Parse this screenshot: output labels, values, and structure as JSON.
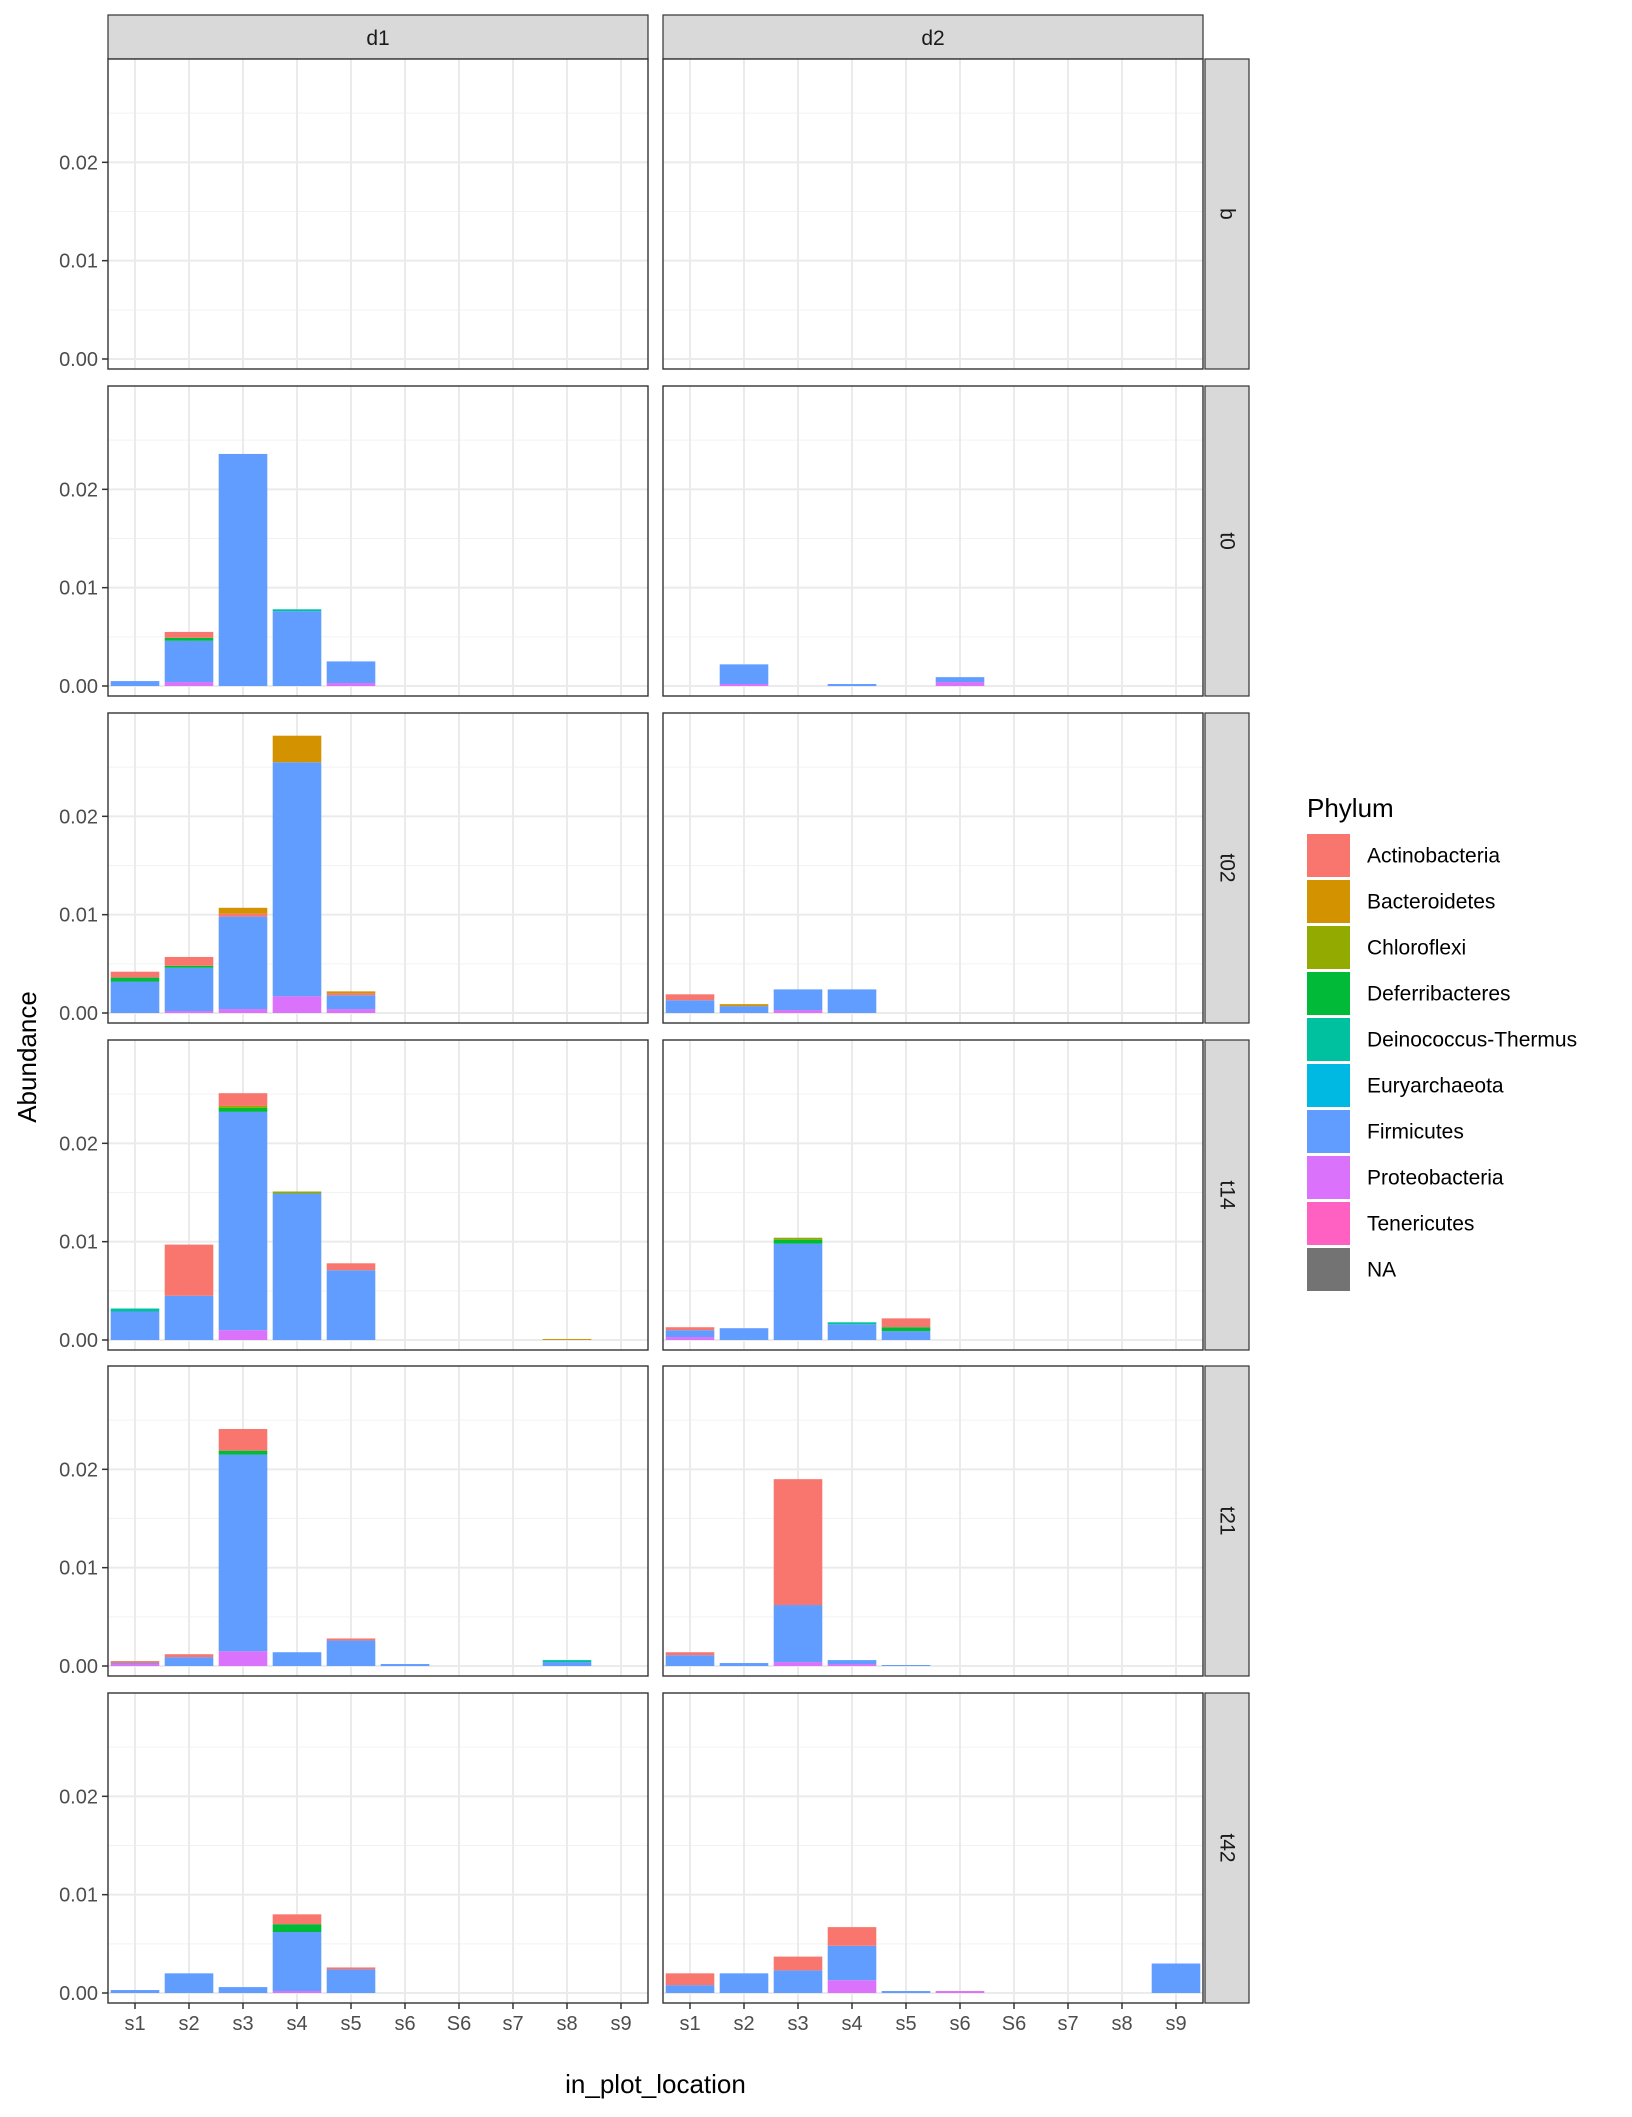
{
  "chart_data": {
    "type": "bar",
    "stacked": true,
    "facet_columns": [
      "d1",
      "d2"
    ],
    "facet_rows": [
      "b",
      "t0",
      "t02",
      "t14",
      "t21",
      "t42"
    ],
    "categories": [
      "s1",
      "s2",
      "s3",
      "s4",
      "s5",
      "s6",
      "S6",
      "s7",
      "s8",
      "s9"
    ],
    "xlabel": "in_plot_location",
    "ylabel": "Abundance",
    "ylim": [
      0,
      0.03
    ],
    "yticks": [
      0.0,
      0.01,
      0.02
    ],
    "ytick_labels": [
      "0.00",
      "0.01",
      "0.02"
    ],
    "grid": true,
    "legend": {
      "title": "Phylum",
      "placement": "right",
      "entries": [
        {
          "name": "Actinobacteria",
          "color": "#F8766D"
        },
        {
          "name": "Bacteroidetes",
          "color": "#D39200"
        },
        {
          "name": "Chloroflexi",
          "color": "#93AA00"
        },
        {
          "name": "Deferribacteres",
          "color": "#00BA38"
        },
        {
          "name": "Deinococcus-Thermus",
          "color": "#00C19F"
        },
        {
          "name": "Euryarchaeota",
          "color": "#00B9E3"
        },
        {
          "name": "Firmicutes",
          "color": "#619CFF"
        },
        {
          "name": "Proteobacteria",
          "color": "#DB72FB"
        },
        {
          "name": "Tenericutes",
          "color": "#FF61C3"
        },
        {
          "name": "NA",
          "color": "#737373"
        }
      ]
    },
    "panels": [
      {
        "row": "b",
        "col": "d1",
        "stacks": []
      },
      {
        "row": "b",
        "col": "d2",
        "stacks": []
      },
      {
        "row": "t0",
        "col": "d1",
        "stacks": [
          {
            "x": "s1",
            "segments": [
              {
                "phylum": "Firmicutes",
                "value": 0.0005
              }
            ]
          },
          {
            "x": "s2",
            "segments": [
              {
                "phylum": "Proteobacteria",
                "value": 0.0004
              },
              {
                "phylum": "Firmicutes",
                "value": 0.0042
              },
              {
                "phylum": "Deferribacteres",
                "value": 0.0003
              },
              {
                "phylum": "Actinobacteria",
                "value": 0.0006
              }
            ]
          },
          {
            "x": "s3",
            "segments": [
              {
                "phylum": "Firmicutes",
                "value": 0.0236
              }
            ]
          },
          {
            "x": "s4",
            "segments": [
              {
                "phylum": "Firmicutes",
                "value": 0.0076
              },
              {
                "phylum": "Deinococcus-Thermus",
                "value": 0.0002
              }
            ]
          },
          {
            "x": "s5",
            "segments": [
              {
                "phylum": "Proteobacteria",
                "value": 0.0003
              },
              {
                "phylum": "Firmicutes",
                "value": 0.0022
              }
            ]
          }
        ]
      },
      {
        "row": "t0",
        "col": "d2",
        "stacks": [
          {
            "x": "s2",
            "segments": [
              {
                "phylum": "Proteobacteria",
                "value": 0.0002
              },
              {
                "phylum": "Firmicutes",
                "value": 0.002
              }
            ]
          },
          {
            "x": "s4",
            "segments": [
              {
                "phylum": "Firmicutes",
                "value": 0.0002
              }
            ]
          },
          {
            "x": "s6",
            "segments": [
              {
                "phylum": "Proteobacteria",
                "value": 0.0004
              },
              {
                "phylum": "Firmicutes",
                "value": 0.0005
              }
            ]
          }
        ]
      },
      {
        "row": "t02",
        "col": "d1",
        "stacks": [
          {
            "x": "s1",
            "segments": [
              {
                "phylum": "Firmicutes",
                "value": 0.0032
              },
              {
                "phylum": "Deferribacteres",
                "value": 0.0004
              },
              {
                "phylum": "Actinobacteria",
                "value": 0.0006
              }
            ]
          },
          {
            "x": "s2",
            "segments": [
              {
                "phylum": "Proteobacteria",
                "value": 0.0002
              },
              {
                "phylum": "Firmicutes",
                "value": 0.0044
              },
              {
                "phylum": "Deferribacteres",
                "value": 0.0002
              },
              {
                "phylum": "Actinobacteria",
                "value": 0.0009
              }
            ]
          },
          {
            "x": "s3",
            "segments": [
              {
                "phylum": "Proteobacteria",
                "value": 0.0004
              },
              {
                "phylum": "Firmicutes",
                "value": 0.0094
              },
              {
                "phylum": "Actinobacteria",
                "value": 0.0003
              },
              {
                "phylum": "Bacteroidetes",
                "value": 0.0006
              }
            ]
          },
          {
            "x": "s4",
            "segments": [
              {
                "phylum": "Proteobacteria",
                "value": 0.0017
              },
              {
                "phylum": "Firmicutes",
                "value": 0.0238
              },
              {
                "phylum": "Bacteroidetes",
                "value": 0.0027
              }
            ]
          },
          {
            "x": "s5",
            "segments": [
              {
                "phylum": "Proteobacteria",
                "value": 0.0004
              },
              {
                "phylum": "Firmicutes",
                "value": 0.0014
              },
              {
                "phylum": "Actinobacteria",
                "value": 0.0002
              },
              {
                "phylum": "Bacteroidetes",
                "value": 0.0002
              }
            ]
          }
        ]
      },
      {
        "row": "t02",
        "col": "d2",
        "stacks": [
          {
            "x": "s1",
            "segments": [
              {
                "phylum": "Firmicutes",
                "value": 0.0013
              },
              {
                "phylum": "Actinobacteria",
                "value": 0.0006
              }
            ]
          },
          {
            "x": "s2",
            "segments": [
              {
                "phylum": "Firmicutes",
                "value": 0.0007
              },
              {
                "phylum": "Bacteroidetes",
                "value": 0.0002
              }
            ]
          },
          {
            "x": "s3",
            "segments": [
              {
                "phylum": "Proteobacteria",
                "value": 0.0003
              },
              {
                "phylum": "Firmicutes",
                "value": 0.0021
              }
            ]
          },
          {
            "x": "s4",
            "segments": [
              {
                "phylum": "Firmicutes",
                "value": 0.0024
              }
            ]
          }
        ]
      },
      {
        "row": "t14",
        "col": "d1",
        "stacks": [
          {
            "x": "s1",
            "segments": [
              {
                "phylum": "Firmicutes",
                "value": 0.0029
              },
              {
                "phylum": "Deinococcus-Thermus",
                "value": 0.0003
              }
            ]
          },
          {
            "x": "s2",
            "segments": [
              {
                "phylum": "Firmicutes",
                "value": 0.0045
              },
              {
                "phylum": "Actinobacteria",
                "value": 0.0052
              }
            ]
          },
          {
            "x": "s3",
            "segments": [
              {
                "phylum": "Proteobacteria",
                "value": 0.001
              },
              {
                "phylum": "Firmicutes",
                "value": 0.0222
              },
              {
                "phylum": "Deferribacteres",
                "value": 0.0004
              },
              {
                "phylum": "Chloroflexi",
                "value": 0.0002
              },
              {
                "phylum": "Actinobacteria",
                "value": 0.0013
              }
            ]
          },
          {
            "x": "s4",
            "segments": [
              {
                "phylum": "Firmicutes",
                "value": 0.0149
              },
              {
                "phylum": "Chloroflexi",
                "value": 0.0002
              }
            ]
          },
          {
            "x": "s5",
            "segments": [
              {
                "phylum": "Firmicutes",
                "value": 0.0071
              },
              {
                "phylum": "Actinobacteria",
                "value": 0.0007
              }
            ]
          },
          {
            "x": "s8",
            "segments": [
              {
                "phylum": "Bacteroidetes",
                "value": 0.0001
              }
            ]
          }
        ]
      },
      {
        "row": "t14",
        "col": "d2",
        "stacks": [
          {
            "x": "s1",
            "segments": [
              {
                "phylum": "Proteobacteria",
                "value": 0.0003
              },
              {
                "phylum": "Firmicutes",
                "value": 0.0007
              },
              {
                "phylum": "Actinobacteria",
                "value": 0.0003
              }
            ]
          },
          {
            "x": "s2",
            "segments": [
              {
                "phylum": "Firmicutes",
                "value": 0.0012
              }
            ]
          },
          {
            "x": "s3",
            "segments": [
              {
                "phylum": "Firmicutes",
                "value": 0.0098
              },
              {
                "phylum": "Deferribacteres",
                "value": 0.0004
              },
              {
                "phylum": "Chloroflexi",
                "value": 0.0002
              }
            ]
          },
          {
            "x": "s4",
            "segments": [
              {
                "phylum": "Firmicutes",
                "value": 0.0016
              },
              {
                "phylum": "Deinococcus-Thermus",
                "value": 0.0002
              }
            ]
          },
          {
            "x": "s5",
            "segments": [
              {
                "phylum": "Firmicutes",
                "value": 0.0009
              },
              {
                "phylum": "Deferribacteres",
                "value": 0.0004
              },
              {
                "phylum": "Actinobacteria",
                "value": 0.0009
              }
            ]
          }
        ]
      },
      {
        "row": "t21",
        "col": "d1",
        "stacks": [
          {
            "x": "s1",
            "segments": [
              {
                "phylum": "Proteobacteria",
                "value": 0.0002
              },
              {
                "phylum": "Firmicutes",
                "value": 0.0001
              },
              {
                "phylum": "Actinobacteria",
                "value": 0.0002
              }
            ]
          },
          {
            "x": "s2",
            "segments": [
              {
                "phylum": "Firmicutes",
                "value": 0.0009
              },
              {
                "phylum": "Actinobacteria",
                "value": 0.0003
              }
            ]
          },
          {
            "x": "s3",
            "segments": [
              {
                "phylum": "Proteobacteria",
                "value": 0.0015
              },
              {
                "phylum": "Firmicutes",
                "value": 0.02
              },
              {
                "phylum": "Deferribacteres",
                "value": 0.0004
              },
              {
                "phylum": "Actinobacteria",
                "value": 0.0022
              }
            ]
          },
          {
            "x": "s4",
            "segments": [
              {
                "phylum": "Firmicutes",
                "value": 0.0014
              }
            ]
          },
          {
            "x": "s5",
            "segments": [
              {
                "phylum": "Firmicutes",
                "value": 0.0026
              },
              {
                "phylum": "Actinobacteria",
                "value": 0.0002
              }
            ]
          },
          {
            "x": "s6",
            "segments": [
              {
                "phylum": "Firmicutes",
                "value": 0.0002
              }
            ]
          },
          {
            "x": "s8",
            "segments": [
              {
                "phylum": "Firmicutes",
                "value": 0.0004
              },
              {
                "phylum": "Deinococcus-Thermus",
                "value": 0.0002
              }
            ]
          }
        ]
      },
      {
        "row": "t21",
        "col": "d2",
        "stacks": [
          {
            "x": "s1",
            "segments": [
              {
                "phylum": "Firmicutes",
                "value": 0.0011
              },
              {
                "phylum": "Actinobacteria",
                "value": 0.0003
              }
            ]
          },
          {
            "x": "s2",
            "segments": [
              {
                "phylum": "Firmicutes",
                "value": 0.0003
              }
            ]
          },
          {
            "x": "s3",
            "segments": [
              {
                "phylum": "Proteobacteria",
                "value": 0.0004
              },
              {
                "phylum": "Firmicutes",
                "value": 0.0058
              },
              {
                "phylum": "Actinobacteria",
                "value": 0.0128
              }
            ]
          },
          {
            "x": "s4",
            "segments": [
              {
                "phylum": "Proteobacteria",
                "value": 0.0002
              },
              {
                "phylum": "Firmicutes",
                "value": 0.0004
              }
            ]
          },
          {
            "x": "s5",
            "segments": [
              {
                "phylum": "Firmicutes",
                "value": 0.0001
              }
            ]
          }
        ]
      },
      {
        "row": "t42",
        "col": "d1",
        "stacks": [
          {
            "x": "s1",
            "segments": [
              {
                "phylum": "Firmicutes",
                "value": 0.0003
              }
            ]
          },
          {
            "x": "s2",
            "segments": [
              {
                "phylum": "Firmicutes",
                "value": 0.002
              }
            ]
          },
          {
            "x": "s3",
            "segments": [
              {
                "phylum": "Firmicutes",
                "value": 0.0006
              }
            ]
          },
          {
            "x": "s4",
            "segments": [
              {
                "phylum": "Proteobacteria",
                "value": 0.0002
              },
              {
                "phylum": "Firmicutes",
                "value": 0.006
              },
              {
                "phylum": "Deferribacteres",
                "value": 0.0008
              },
              {
                "phylum": "Actinobacteria",
                "value": 0.001
              }
            ]
          },
          {
            "x": "s5",
            "segments": [
              {
                "phylum": "Firmicutes",
                "value": 0.0024
              },
              {
                "phylum": "Actinobacteria",
                "value": 0.0002
              }
            ]
          }
        ]
      },
      {
        "row": "t42",
        "col": "d2",
        "stacks": [
          {
            "x": "s1",
            "segments": [
              {
                "phylum": "Firmicutes",
                "value": 0.0008
              },
              {
                "phylum": "Actinobacteria",
                "value": 0.0012
              }
            ]
          },
          {
            "x": "s2",
            "segments": [
              {
                "phylum": "Firmicutes",
                "value": 0.002
              }
            ]
          },
          {
            "x": "s3",
            "segments": [
              {
                "phylum": "Firmicutes",
                "value": 0.0023
              },
              {
                "phylum": "Actinobacteria",
                "value": 0.0014
              }
            ]
          },
          {
            "x": "s4",
            "segments": [
              {
                "phylum": "Proteobacteria",
                "value": 0.0013
              },
              {
                "phylum": "Firmicutes",
                "value": 0.0035
              },
              {
                "phylum": "Actinobacteria",
                "value": 0.0019
              }
            ]
          },
          {
            "x": "s5",
            "segments": [
              {
                "phylum": "Firmicutes",
                "value": 0.0002
              }
            ]
          },
          {
            "x": "s6",
            "segments": [
              {
                "phylum": "Proteobacteria",
                "value": 0.0002
              }
            ]
          },
          {
            "x": "s9",
            "segments": [
              {
                "phylum": "Firmicutes",
                "value": 0.003
              }
            ]
          }
        ]
      }
    ]
  }
}
